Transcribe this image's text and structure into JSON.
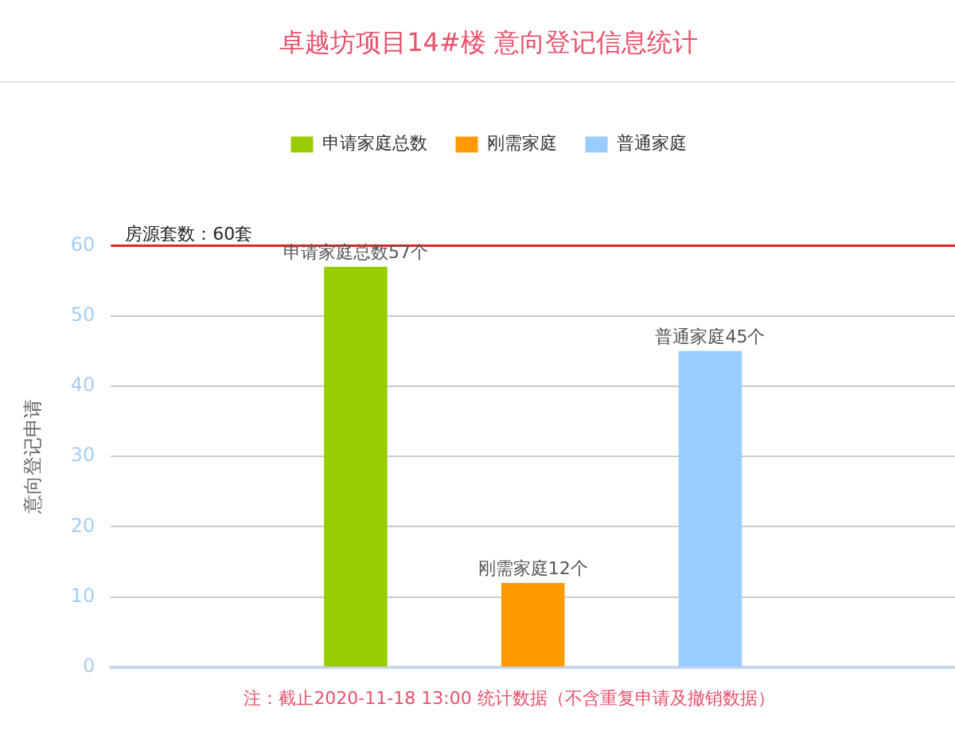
{
  "chart_data": {
    "type": "bar",
    "title": "卓越坊项目14#楼 意向登记信息统计",
    "ylabel": "意向登记申请",
    "categories": [
      null
    ],
    "series": [
      {
        "name": "申请家庭总数",
        "color": "#99cc00",
        "values": [
          57
        ],
        "value_labels": [
          "申请家庭总数57个"
        ]
      },
      {
        "name": "刚需家庭",
        "color": "#ff9900",
        "values": [
          12
        ],
        "value_labels": [
          "刚需家庭12个"
        ]
      },
      {
        "name": "普通家庭",
        "color": "#99ccff",
        "values": [
          45
        ],
        "value_labels": [
          "普通家庭45个"
        ]
      }
    ],
    "ylim": [
      0,
      60
    ],
    "yticks": [
      0,
      10,
      20,
      30,
      40,
      50,
      60
    ],
    "grid": "y",
    "legend": "top",
    "tick_labels": "y",
    "ref_lines": [
      {
        "axis": "y",
        "value": 60,
        "label": "房源套数：60套",
        "color": "#e02828"
      }
    ],
    "annotations": [
      "注：截止2020-11-18 13:00 统计数据（不含重复申请及撤销数据）"
    ]
  }
}
